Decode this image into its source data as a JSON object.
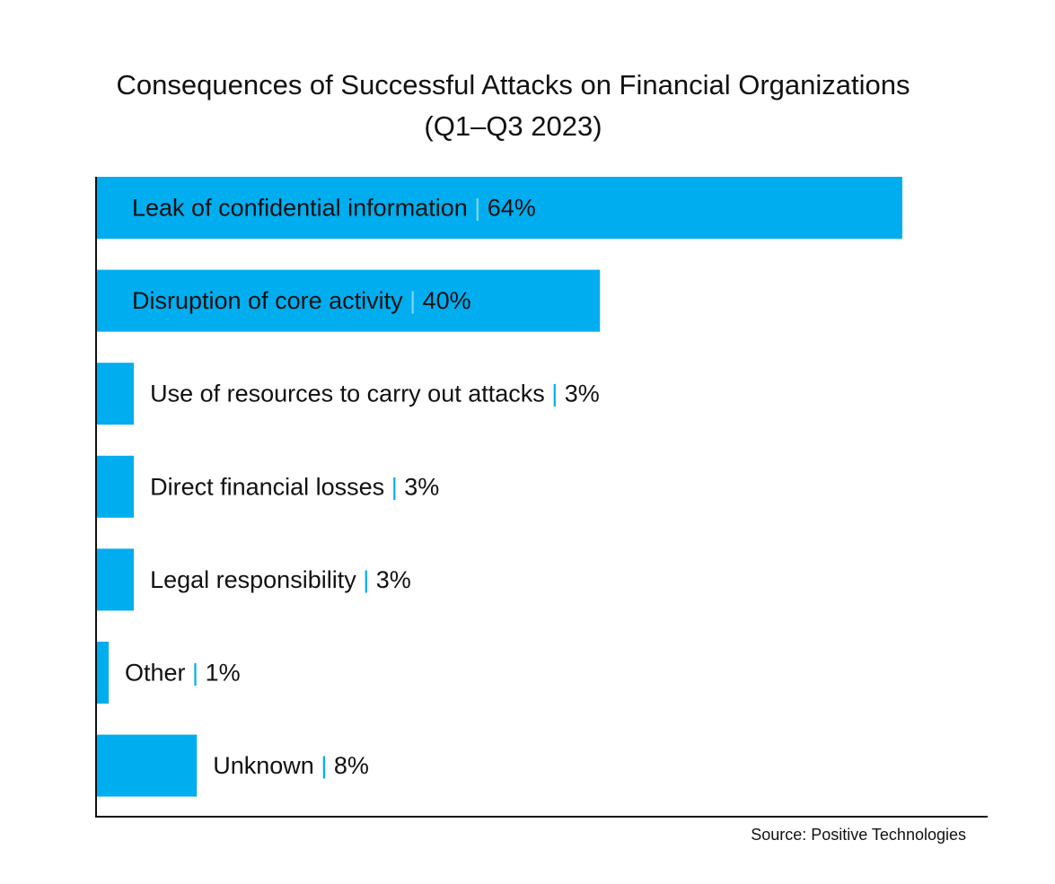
{
  "chart_data": {
    "type": "bar",
    "orientation": "horizontal",
    "title": "Consequences of Successful Attacks on Financial Organizations",
    "subtitle": "(Q1–Q3 2023)",
    "categories": [
      "Leak of confidential information",
      "Disruption of core activity",
      "Use of resources to carry out attacks",
      "Direct financial losses",
      "Legal responsibility",
      "Other",
      "Unknown"
    ],
    "values": [
      64,
      40,
      3,
      3,
      3,
      1,
      8
    ],
    "value_labels": [
      "64%",
      "40%",
      "3%",
      "3%",
      "3%",
      "1%",
      "8%"
    ],
    "separator": "|",
    "xlim": [
      0,
      70
    ],
    "unit": "%",
    "grid": false,
    "legend": "none",
    "source": "Source: Positive Technologies"
  },
  "colors": {
    "bar": "#00adef",
    "separator": "#00adef",
    "axis": "#111111",
    "text": "#111111",
    "background": "#ffffff"
  }
}
